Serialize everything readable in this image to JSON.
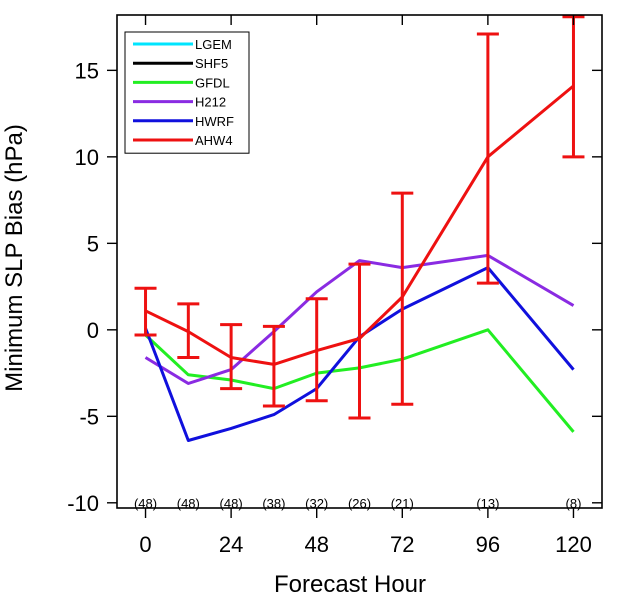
{
  "chart_data": {
    "type": "line",
    "title": "",
    "xlabel": "Forecast Hour",
    "ylabel": "Minimum SLP Bias (hPa)",
    "xlim": [
      -8,
      128
    ],
    "ylim": [
      -10.3,
      18.2
    ],
    "x_ticks": [
      0,
      24,
      48,
      72,
      96,
      120
    ],
    "y_ticks": [
      -10,
      -5,
      0,
      5,
      10,
      15
    ],
    "grid": false,
    "legend_position": "top-left",
    "sample_counts": [
      {
        "x": 0,
        "label": "(48)"
      },
      {
        "x": 12,
        "label": "(48)"
      },
      {
        "x": 24,
        "label": "(48)"
      },
      {
        "x": 36,
        "label": "(38)"
      },
      {
        "x": 48,
        "label": "(32)"
      },
      {
        "x": 60,
        "label": "(26)"
      },
      {
        "x": 72,
        "label": "(21)"
      },
      {
        "x": 96,
        "label": "(13)"
      },
      {
        "x": 120,
        "label": "(8)"
      }
    ],
    "series": [
      {
        "name": "LGEM",
        "color": "#00e5ff",
        "x": [],
        "y": []
      },
      {
        "name": "SHF5",
        "color": "#000000",
        "x": [],
        "y": []
      },
      {
        "name": "GFDL",
        "color": "#22ee22",
        "x": [
          0,
          12,
          24,
          36,
          48,
          60,
          72,
          96,
          120
        ],
        "y": [
          -0.3,
          -2.6,
          -2.9,
          -3.4,
          -2.5,
          -2.2,
          -1.7,
          0.0,
          -5.9
        ]
      },
      {
        "name": "H212",
        "color": "#8a2be2",
        "x": [
          0,
          12,
          24,
          36,
          48,
          60,
          72,
          96,
          120
        ],
        "y": [
          -1.6,
          -3.1,
          -2.3,
          -0.1,
          2.2,
          4.0,
          3.6,
          4.3,
          1.4
        ]
      },
      {
        "name": "HWRF",
        "color": "#1010dd",
        "x": [
          0,
          12,
          24,
          36,
          48,
          60,
          72,
          96,
          120
        ],
        "y": [
          0.1,
          -6.4,
          -5.7,
          -4.9,
          -3.4,
          -0.4,
          1.2,
          3.6,
          -2.3
        ]
      },
      {
        "name": "AHW4",
        "color": "#ee1111",
        "x": [
          0,
          12,
          24,
          36,
          48,
          60,
          72,
          96,
          120
        ],
        "y": [
          1.1,
          -0.1,
          -1.6,
          -2.0,
          -1.2,
          -0.5,
          1.9,
          10.0,
          14.1
        ],
        "error_low": [
          -0.3,
          -1.6,
          -3.4,
          -4.4,
          -4.1,
          -5.1,
          -4.3,
          2.7,
          10.0
        ],
        "error_high": [
          2.4,
          1.5,
          0.3,
          0.2,
          1.8,
          3.8,
          7.9,
          17.1,
          18.1
        ]
      }
    ]
  }
}
